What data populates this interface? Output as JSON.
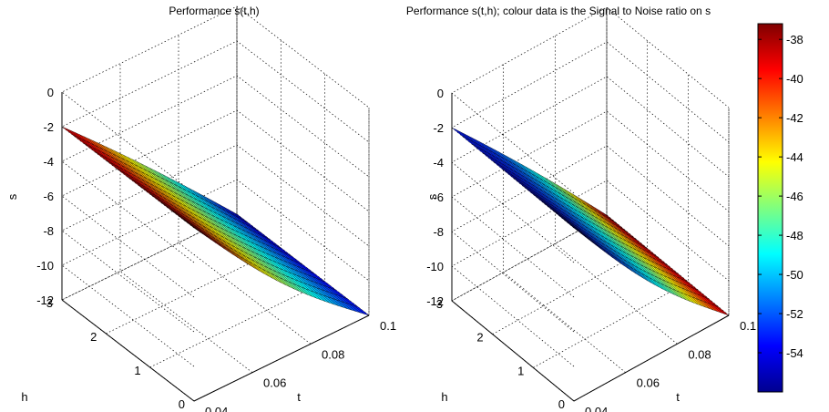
{
  "chart_data": [
    {
      "type": "surface",
      "title": "Performance s(t,h)",
      "xlabel": "t",
      "ylabel": "h",
      "zlabel": "s",
      "t_ticks": [
        "0.04",
        "0.06",
        "0.08",
        "0.1"
      ],
      "h_ticks": [
        "0",
        "1",
        "2",
        "3"
      ],
      "s_ticks": [
        "0",
        "-2",
        "-4",
        "-6",
        "-8",
        "-10",
        "-12"
      ],
      "xlim": [
        0.04,
        0.1
      ],
      "ylim": [
        0,
        3
      ],
      "zlim": [
        -12,
        0
      ],
      "grid": true,
      "colour_data": "s (height)",
      "colormap": "jet",
      "surface": {
        "t": [
          0.04,
          0.1
        ],
        "h": [
          0,
          3
        ],
        "s_at_t_0_04": -2,
        "s_at_t_0_1": -12,
        "s_drop_near_h0": -0.8
      }
    },
    {
      "type": "surface",
      "title": "Performance s(t,h); colour data is the Signal to Noise ratio on s",
      "xlabel": "t",
      "ylabel": "h",
      "zlabel": "s",
      "t_ticks": [
        "0.04",
        "0.06",
        "0.08",
        "0.1"
      ],
      "h_ticks": [
        "0",
        "1",
        "2",
        "3"
      ],
      "s_ticks": [
        "0",
        "-2",
        "-4",
        "-6",
        "-8",
        "-10",
        "-12"
      ],
      "xlim": [
        0.04,
        0.1
      ],
      "ylim": [
        0,
        3
      ],
      "zlim": [
        -12,
        0
      ],
      "grid": true,
      "colour_data": "Signal to Noise ratio",
      "colormap": "jet",
      "colorbar": {
        "ticks": [
          "-38",
          "-40",
          "-42",
          "-44",
          "-46",
          "-48",
          "-50",
          "-52",
          "-54"
        ],
        "range": [
          -56,
          -37.2
        ]
      }
    }
  ]
}
